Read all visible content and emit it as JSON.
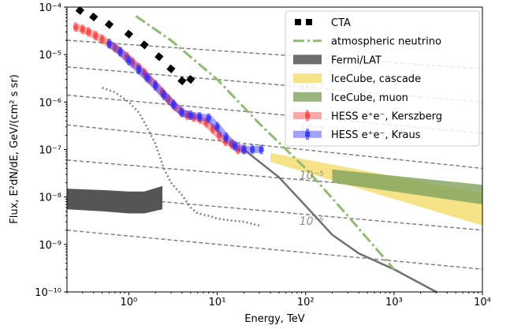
{
  "chart_data": {
    "type": "line",
    "xlabel": "Energy, TeV",
    "ylabel": "Flux, E²dN/dE, GeV/(cm² s sr)",
    "xscale": "log",
    "yscale": "log",
    "xlim": [
      0.2,
      10000
    ],
    "ylim": [
      1e-10,
      0.0001
    ],
    "x_tick_values": [
      1,
      10,
      100,
      1000,
      10000
    ],
    "x_tick_labels": [
      "10⁰",
      "10¹",
      "10²",
      "10³",
      "10⁴"
    ],
    "y_tick_values": [
      1e-10,
      1e-09,
      1e-08,
      1e-07,
      1e-06,
      1e-05,
      0.0001
    ],
    "y_tick_labels": [
      "10⁻¹⁰",
      "10⁻⁹",
      "10⁻⁸",
      "10⁻⁷",
      "10⁻⁶",
      "10⁻⁵",
      "10⁻⁴"
    ],
    "legend": {
      "position": "top-right",
      "entries": [
        "CTA",
        "atmospheric neutrino",
        "Fermi/LAT",
        "IceCube, cascade",
        "IceCube, muon",
        "HESS e⁺e⁻, Kerszberg",
        "HESS e⁺e⁻, Kraus"
      ]
    },
    "series": [
      {
        "name": "CTA",
        "color": "#000000",
        "style": "dotted",
        "x": [
          0.28,
          0.4,
          0.6,
          1.0,
          1.5,
          2.2,
          3.0,
          4.0,
          5.0
        ],
        "y": [
          8.5e-05,
          6.2e-05,
          4.3e-05,
          2.7e-05,
          1.6e-05,
          9e-06,
          5e-06,
          2.8e-06,
          3e-06
        ]
      },
      {
        "name": "atmospheric neutrino",
        "color": "#8fbc6f",
        "style": "dashdot",
        "x": [
          1.2,
          3,
          10,
          30,
          100,
          300,
          1000
        ],
        "y": [
          6.5e-05,
          2e-05,
          3e-06,
          3.5e-07,
          4e-08,
          4e-09,
          3e-10
        ]
      },
      {
        "name": "Fermi/LAT",
        "color": "#555555",
        "style": "band",
        "x": [
          0.2,
          0.5,
          1.0,
          1.5,
          2.4
        ],
        "lower": [
          5.5e-09,
          5e-09,
          4.5e-09,
          4.5e-09,
          5.5e-09
        ],
        "upper": [
          1.5e-08,
          1.4e-08,
          1.3e-08,
          1.3e-08,
          1.7e-08
        ]
      },
      {
        "name": "IceCube, cascade",
        "color": "#f5de72",
        "style": "band",
        "x": [
          40,
          10000
        ],
        "lower": [
          5.5e-08,
          2.5e-09
        ],
        "upper": [
          8.5e-08,
          1.2e-08
        ]
      },
      {
        "name": "IceCube, muon",
        "color": "#7fa35c",
        "style": "band",
        "x": [
          200,
          10000
        ],
        "lower": [
          2e-08,
          7e-09
        ],
        "upper": [
          3.8e-08,
          1.8e-08
        ]
      },
      {
        "name": "HESS e⁺e⁻, Kerszberg",
        "color": "#ff4040",
        "style": "errorband",
        "x": [
          0.25,
          0.3,
          0.35,
          0.42,
          0.5,
          0.6,
          0.7,
          0.8,
          0.95,
          1.1,
          1.3,
          1.5,
          1.7,
          2.0,
          2.4,
          2.8,
          3.3,
          3.9,
          4.6,
          5.4,
          6.4,
          7.5,
          8.9,
          10.5,
          12.4,
          14.6,
          17.2,
          20.3
        ],
        "y": [
          3.8e-05,
          3.4e-05,
          3e-05,
          2.5e-05,
          2.1e-05,
          1.7e-05,
          1.4e-05,
          1.15e-05,
          9e-06,
          7e-06,
          5.3e-06,
          4.1e-06,
          3.1e-06,
          2.3e-06,
          1.6e-06,
          1.15e-06,
          8.2e-07,
          6.3e-07,
          5.2e-07,
          4.8e-07,
          4.4e-07,
          3.7e-07,
          2.7e-07,
          2e-07,
          1.5e-07,
          1.3e-07,
          1e-07,
          1e-07
        ]
      },
      {
        "name": "HESS e⁺e⁻, Kraus",
        "color": "#3030ff",
        "style": "errorband",
        "x": [
          0.6,
          0.8,
          1.0,
          1.3,
          1.6,
          2.0,
          2.5,
          3.2,
          4.0,
          5.0,
          6.3,
          8.0,
          10,
          12.6,
          15.8,
          20,
          25,
          31.6
        ],
        "y": [
          1.7e-05,
          1.15e-05,
          7.5e-06,
          4.8e-06,
          3.3e-06,
          2.2e-06,
          1.4e-06,
          9e-07,
          6e-07,
          5.3e-07,
          4.9e-07,
          4.6e-07,
          3e-07,
          1.8e-07,
          1.2e-07,
          1e-07,
          1e-07,
          1e-07
        ]
      },
      {
        "name": "dotted grey curve",
        "color": "#808080",
        "style": "dotted-thin",
        "x": [
          0.5,
          0.7,
          1.0,
          1.3,
          1.6,
          2.0,
          2.5,
          3.0,
          4.0,
          5.0,
          6.0,
          8.0,
          10,
          14,
          20,
          30
        ],
        "y": [
          2e-06,
          1.6e-06,
          1e-06,
          6e-07,
          3e-07,
          1.3e-07,
          4e-08,
          2e-08,
          1.1e-08,
          6e-09,
          4.5e-09,
          4e-09,
          3.5e-09,
          3.2e-09,
          3e-09,
          2.5e-09
        ]
      },
      {
        "name": "solid grey curve",
        "color": "#707070",
        "style": "solid",
        "x": [
          20,
          50,
          100,
          200,
          400,
          1000,
          3000,
          10000
        ],
        "y": [
          1e-07,
          2.6e-08,
          6.5e-09,
          1.6e-09,
          6.5e-10,
          3e-10,
          1e-10,
          3.5e-11
        ]
      }
    ],
    "reference_lines": {
      "color": "#808080",
      "style": "dashed",
      "x_range": [
        0.2,
        10000
      ],
      "y_start": [
        2e-05,
        5.5e-06,
        1.4e-06,
        3.3e-07,
        6e-08,
        1.2e-08,
        2e-09
      ],
      "y_end": [
        5e-06,
        1e-06,
        2.2e-07,
        4e-08,
        1.1e-08,
        2e-09,
        3e-10
      ]
    },
    "annotations": [
      {
        "text": "10⁻³",
        "x": 85,
        "y": 1.8e-06
      },
      {
        "text": "10⁻⁴",
        "x": 85,
        "y": 2.2e-07
      },
      {
        "text": "10⁻⁵",
        "x": 85,
        "y": 2.4e-08
      },
      {
        "text": "10⁻⁶",
        "x": 85,
        "y": 2.6e-09
      }
    ]
  }
}
